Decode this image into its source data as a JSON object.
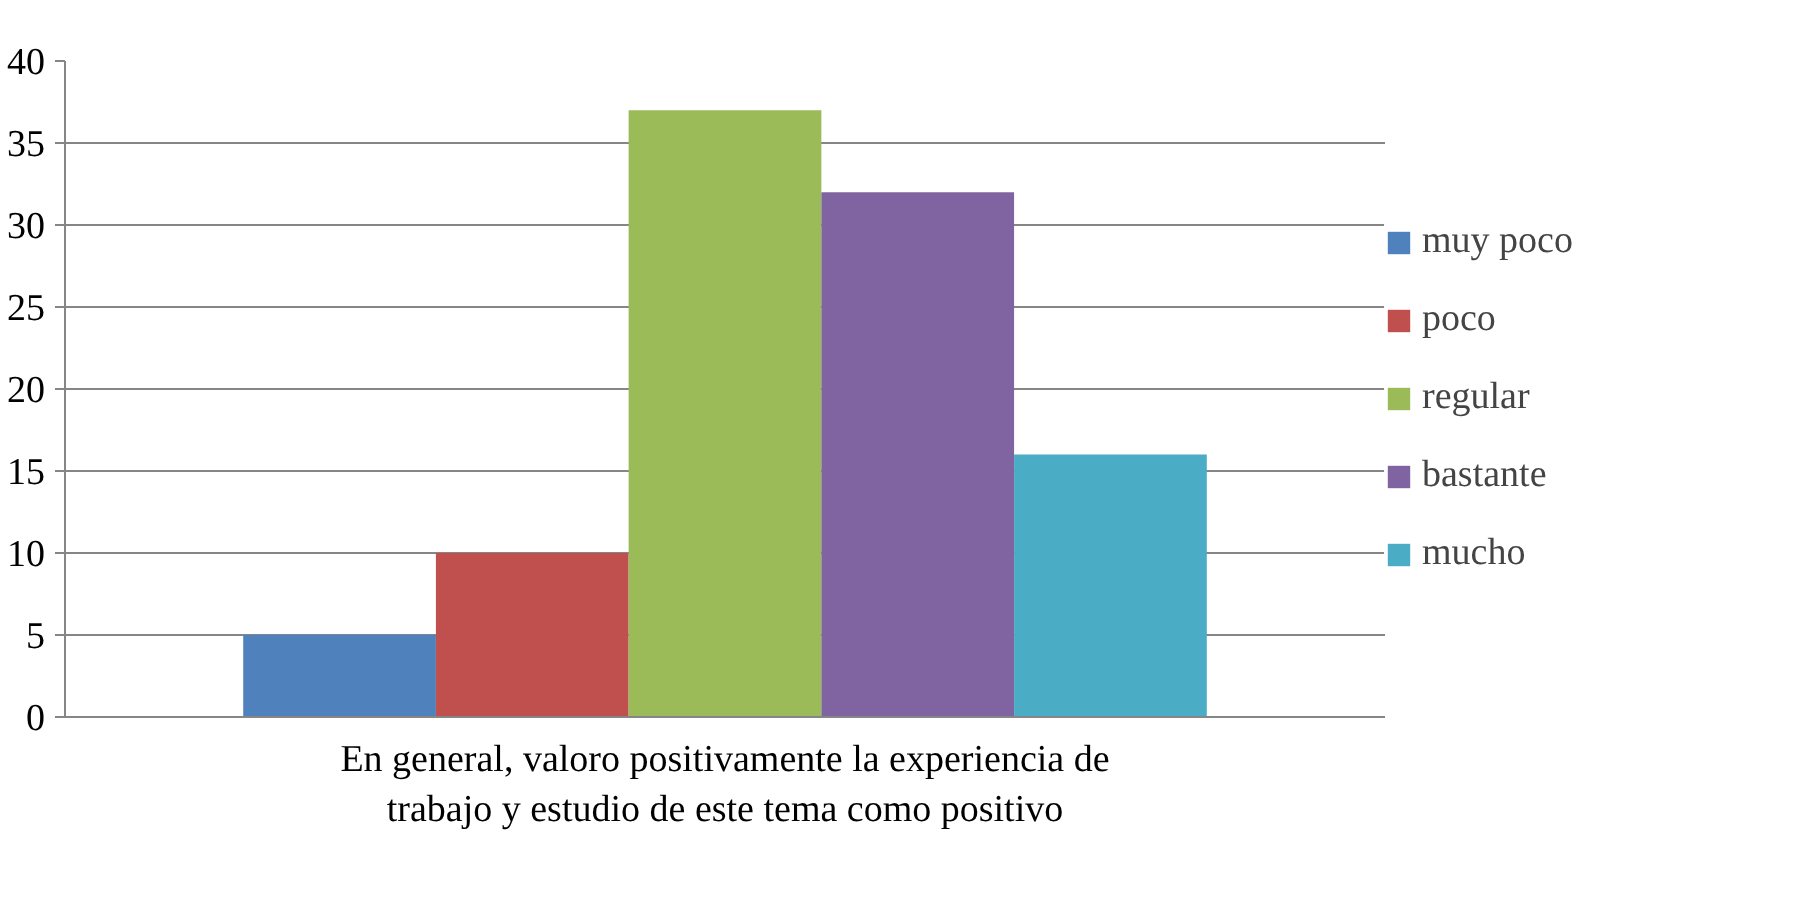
{
  "chart_data": {
    "type": "bar",
    "categories": [
      "En general, valoro positivamente la experiencia de trabajo y estudio de este tema como positivo"
    ],
    "series": [
      {
        "name": "muy poco",
        "color": "#4f81bd",
        "values": [
          5
        ]
      },
      {
        "name": "poco",
        "color": "#c0504d",
        "values": [
          10
        ]
      },
      {
        "name": "regular",
        "color": "#9bbb59",
        "values": [
          37
        ]
      },
      {
        "name": "bastante",
        "color": "#8064a2",
        "values": [
          32
        ]
      },
      {
        "name": "mucho",
        "color": "#4bacc6",
        "values": [
          16
        ]
      }
    ],
    "ylim": [
      0,
      40
    ],
    "yticks": [
      0,
      5,
      10,
      15,
      20,
      25,
      30,
      35,
      40
    ],
    "grid": "y",
    "legend": "right"
  }
}
